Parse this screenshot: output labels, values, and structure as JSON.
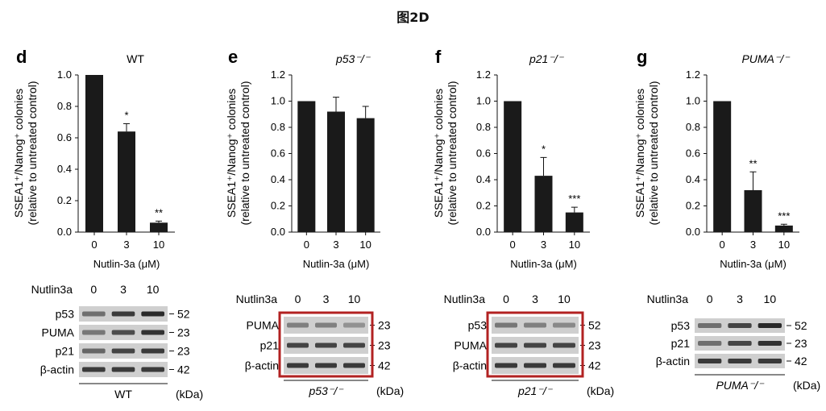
{
  "figure_title": "图2D",
  "shared": {
    "xlabel": "Nutlin-3a (μM)",
    "ylabel_line1": "SSEA1⁺/Nanog⁺ colonies",
    "ylabel_line2": "(relative to untreated control)",
    "kda_label": "(kDa)",
    "treatment_label": "Nutlin3a"
  },
  "chart_data": [
    {
      "panel": "d",
      "type": "bar",
      "title": "WT",
      "title_italic": false,
      "categories": [
        "0",
        "3",
        "10"
      ],
      "values": [
        1.0,
        0.64,
        0.06
      ],
      "errors": [
        0,
        0.05,
        0.01
      ],
      "significance": [
        "",
        "*",
        "**"
      ],
      "ylim": [
        0,
        1.0
      ],
      "yticks": [
        "0.0",
        "0.2",
        "0.4",
        "0.6",
        "0.8",
        "1.0"
      ],
      "xlabel": "Nutlin-3a (μM)",
      "ylabel": "SSEA1⁺/Nanog⁺ colonies (relative to untreated control)"
    },
    {
      "panel": "e",
      "type": "bar",
      "title": "p53⁻/⁻",
      "title_italic": true,
      "categories": [
        "0",
        "3",
        "10"
      ],
      "values": [
        1.0,
        0.92,
        0.87
      ],
      "errors": [
        0,
        0.11,
        0.09
      ],
      "significance": [
        "",
        "",
        ""
      ],
      "ylim": [
        0,
        1.2
      ],
      "yticks": [
        "0.0",
        "0.2",
        "0.4",
        "0.6",
        "0.8",
        "1.0",
        "1.2"
      ],
      "xlabel": "Nutlin-3a (μM)",
      "ylabel": "SSEA1⁺/Nanog⁺ colonies (relative to untreated control)"
    },
    {
      "panel": "f",
      "type": "bar",
      "title": "p21⁻/⁻",
      "title_italic": true,
      "categories": [
        "0",
        "3",
        "10"
      ],
      "values": [
        1.0,
        0.43,
        0.15
      ],
      "errors": [
        0,
        0.14,
        0.04
      ],
      "significance": [
        "",
        "*",
        "***"
      ],
      "ylim": [
        0,
        1.2
      ],
      "yticks": [
        "0.0",
        "0.2",
        "0.4",
        "0.6",
        "0.8",
        "1.0",
        "1.2"
      ],
      "xlabel": "Nutlin-3a (μM)",
      "ylabel": "SSEA1⁺/Nanog⁺ colonies (relative to untreated control)"
    },
    {
      "panel": "g",
      "type": "bar",
      "title": "PUMA⁻/⁻",
      "title_italic": true,
      "categories": [
        "0",
        "3",
        "10"
      ],
      "values": [
        1.0,
        0.32,
        0.05
      ],
      "errors": [
        0,
        0.14,
        0.01
      ],
      "significance": [
        "",
        "**",
        "***"
      ],
      "ylim": [
        0,
        1.2
      ],
      "yticks": [
        "0.0",
        "0.2",
        "0.4",
        "0.6",
        "0.8",
        "1.0",
        "1.2"
      ],
      "xlabel": "Nutlin-3a (μM)",
      "ylabel": "SSEA1⁺/Nanog⁺ colonies (relative to untreated control)"
    }
  ],
  "blots": [
    {
      "panel": "d",
      "doses": [
        "0",
        "3",
        "10"
      ],
      "genotype": "WT",
      "genotype_italic": false,
      "highlighted": false,
      "rows": [
        {
          "label": "p53",
          "kda": "52",
          "intensity": [
            0.55,
            0.85,
            0.95
          ]
        },
        {
          "label": "PUMA",
          "kda": "23",
          "intensity": [
            0.5,
            0.75,
            0.9
          ]
        },
        {
          "label": "p21",
          "kda": "23",
          "intensity": [
            0.6,
            0.8,
            0.85
          ]
        },
        {
          "label": "β-actin",
          "kda": "42",
          "intensity": [
            0.85,
            0.85,
            0.85
          ]
        }
      ]
    },
    {
      "panel": "e",
      "doses": [
        "0",
        "3",
        "10"
      ],
      "genotype": "p53⁻/⁻",
      "genotype_italic": true,
      "highlighted": true,
      "rows": [
        {
          "label": "PUMA",
          "kda": "23",
          "intensity": [
            0.45,
            0.45,
            0.35
          ]
        },
        {
          "label": "p21",
          "kda": "23",
          "intensity": [
            0.8,
            0.8,
            0.8
          ]
        },
        {
          "label": "β-actin",
          "kda": "42",
          "intensity": [
            0.85,
            0.85,
            0.85
          ]
        }
      ]
    },
    {
      "panel": "f",
      "doses": [
        "0",
        "3",
        "10"
      ],
      "genotype": "p21⁻/⁻",
      "genotype_italic": true,
      "highlighted": true,
      "rows": [
        {
          "label": "p53",
          "kda": "52",
          "intensity": [
            0.5,
            0.45,
            0.4
          ]
        },
        {
          "label": "PUMA",
          "kda": "23",
          "intensity": [
            0.8,
            0.8,
            0.8
          ]
        },
        {
          "label": "β-actin",
          "kda": "42",
          "intensity": [
            0.85,
            0.85,
            0.85
          ]
        }
      ]
    },
    {
      "panel": "g",
      "doses": [
        "0",
        "3",
        "10"
      ],
      "genotype": "PUMA⁻/⁻",
      "genotype_italic": true,
      "highlighted": false,
      "rows": [
        {
          "label": "p53",
          "kda": "52",
          "intensity": [
            0.55,
            0.8,
            0.95
          ]
        },
        {
          "label": "p21",
          "kda": "23",
          "intensity": [
            0.55,
            0.8,
            0.9
          ]
        },
        {
          "label": "β-actin",
          "kda": "42",
          "intensity": [
            0.85,
            0.85,
            0.85
          ]
        }
      ]
    }
  ],
  "colors": {
    "bar": "#1a1a1a",
    "highlight_box": "#b22222",
    "blot_bg": "#cfcfcf",
    "band": "#202020"
  }
}
